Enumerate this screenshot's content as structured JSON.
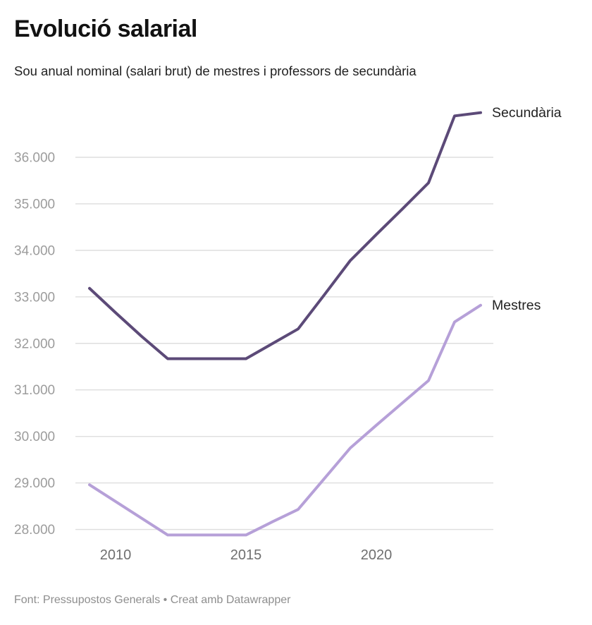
{
  "header": {
    "title": "Evolució salarial",
    "subtitle": "Sou anual nominal (salari brut) de mestres i professors de secundària"
  },
  "footer": {
    "text": "Font: Pressupostos Generals • Creat amb Datawrapper"
  },
  "colors": {
    "background": "#ffffff",
    "title": "#121212",
    "subtitle": "#1f1f1f",
    "grid": "#dedede",
    "y_tick_label": "#9c9c9c",
    "x_tick_label": "#6f6f6f",
    "series_label": "#222222",
    "footer": "#8e8e8e",
    "secundaria_line": "#5c4a78",
    "mestres_line": "#b6a0d8"
  },
  "chart_data": {
    "type": "line",
    "title": "Evolució salarial",
    "subtitle": "Sou anual nominal (salari brut) de mestres i professors de secundària",
    "x": [
      2009,
      2010,
      2011,
      2012,
      2013,
      2014,
      2015,
      2016,
      2017,
      2018,
      2019,
      2020,
      2021,
      2022,
      2023,
      2024
    ],
    "series": [
      {
        "name": "Secundària",
        "color": "#5c4a78",
        "values": [
          33183,
          32660,
          32150,
          31670,
          31670,
          31670,
          31670,
          31990,
          32310,
          33040,
          33780,
          34340,
          34890,
          35450,
          36890,
          36960
        ]
      },
      {
        "name": "Mestres",
        "color": "#b6a0d8",
        "values": [
          28960,
          28600,
          28240,
          27880,
          27880,
          27880,
          27880,
          28160,
          28430,
          29090,
          29750,
          30240,
          30720,
          31200,
          32460,
          32820
        ]
      }
    ],
    "y_ticks": [
      {
        "value": 36000,
        "label": "36.000"
      },
      {
        "value": 35000,
        "label": "35.000"
      },
      {
        "value": 34000,
        "label": "34.000"
      },
      {
        "value": 33000,
        "label": "33.000"
      },
      {
        "value": 32000,
        "label": "32.000"
      },
      {
        "value": 31000,
        "label": "31.000"
      },
      {
        "value": 30000,
        "label": "30.000"
      },
      {
        "value": 29000,
        "label": "29.000"
      },
      {
        "value": 28000,
        "label": "28.000"
      }
    ],
    "x_ticks": [
      {
        "value": 2010,
        "label": "2010"
      },
      {
        "value": 2015,
        "label": "2015"
      },
      {
        "value": 2020,
        "label": "2020"
      }
    ],
    "ylim": [
      27800,
      37100
    ],
    "xlim": [
      2009,
      2024
    ],
    "grid": "horizontal-only",
    "legend_position": "labels-at-line-ends-right",
    "xlabel": "",
    "ylabel": ""
  }
}
